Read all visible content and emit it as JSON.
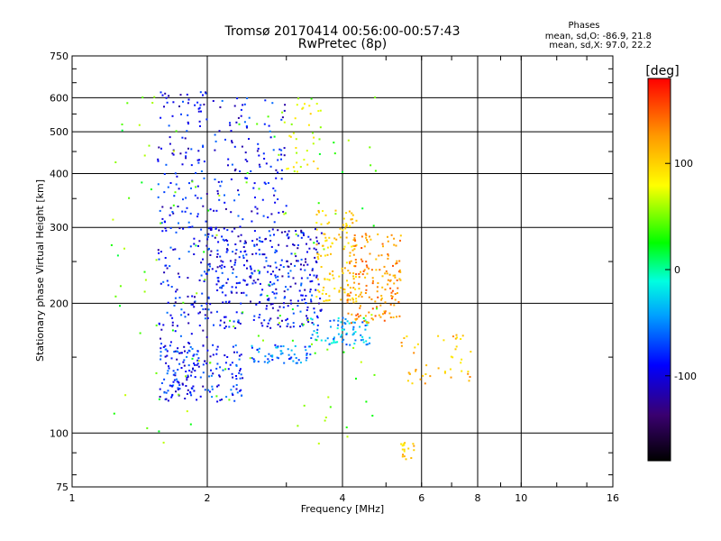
{
  "chart_data": {
    "type": "scatter",
    "title": "Tromsø 20170414 00:56:00-00:57:43",
    "subtitle": "RwPretec (8p)",
    "stats": {
      "heading": "Phases",
      "line_o": "mean, sd,O: -86.9, 21.8",
      "line_x": "mean, sd,X:  97.0, 22.2"
    },
    "xlabel": "Frequency [MHz]",
    "ylabel": "Stationary phase Virtual Height [km]",
    "x_scale": "log",
    "y_scale": "log",
    "xlim": [
      1,
      16
    ],
    "ylim": [
      75,
      750
    ],
    "x_ticks": [
      1,
      2,
      4,
      6,
      8,
      10,
      16
    ],
    "x_tick_labels": [
      "1",
      "2",
      "4",
      "6",
      "8",
      "10",
      "16"
    ],
    "y_ticks": [
      75,
      100,
      200,
      300,
      400,
      500,
      600,
      750
    ],
    "y_tick_labels": [
      "75",
      "100",
      "200",
      "300",
      "400",
      "500",
      "600",
      "750"
    ],
    "grid": true,
    "colorbar": {
      "label": "[deg]",
      "range": [
        -180,
        180
      ],
      "ticks": [
        100,
        0,
        -100
      ],
      "tick_labels": [
        "100",
        "0",
        "-100"
      ]
    },
    "clusters": [
      {
        "f": [
          1.55,
          2.0
        ],
        "h": [
          120,
          620
        ],
        "phase": -100,
        "n": 260
      },
      {
        "f": [
          2.0,
          3.6
        ],
        "h": [
          175,
          300
        ],
        "phase": -100,
        "n": 380
      },
      {
        "f": [
          2.0,
          3.0
        ],
        "h": [
          300,
          600
        ],
        "phase": -100,
        "n": 120
      },
      {
        "f": [
          1.6,
          2.4
        ],
        "h": [
          118,
          160
        ],
        "phase": -95,
        "n": 140
      },
      {
        "f": [
          2.5,
          3.4
        ],
        "h": [
          145,
          160
        ],
        "phase": -70,
        "n": 60
      },
      {
        "f": [
          3.4,
          4.6
        ],
        "h": [
          160,
          185
        ],
        "phase": -55,
        "n": 80
      },
      {
        "f": [
          3.5,
          4.3
        ],
        "h": [
          200,
          330
        ],
        "phase": 90,
        "n": 120
      },
      {
        "f": [
          4.1,
          5.4
        ],
        "h": [
          180,
          290
        ],
        "phase": 120,
        "n": 170
      },
      {
        "f": [
          3.0,
          3.6
        ],
        "h": [
          400,
          600
        ],
        "phase": 60,
        "n": 35
      },
      {
        "f": [
          5.4,
          7.8
        ],
        "h": [
          130,
          170
        ],
        "phase": 100,
        "n": 45
      },
      {
        "f": [
          5.4,
          5.8
        ],
        "h": [
          85,
          95
        ],
        "phase": 90,
        "n": 18
      },
      {
        "f": [
          1.2,
          4.8
        ],
        "h": [
          90,
          620
        ],
        "phase": 20,
        "n": 130
      }
    ]
  }
}
